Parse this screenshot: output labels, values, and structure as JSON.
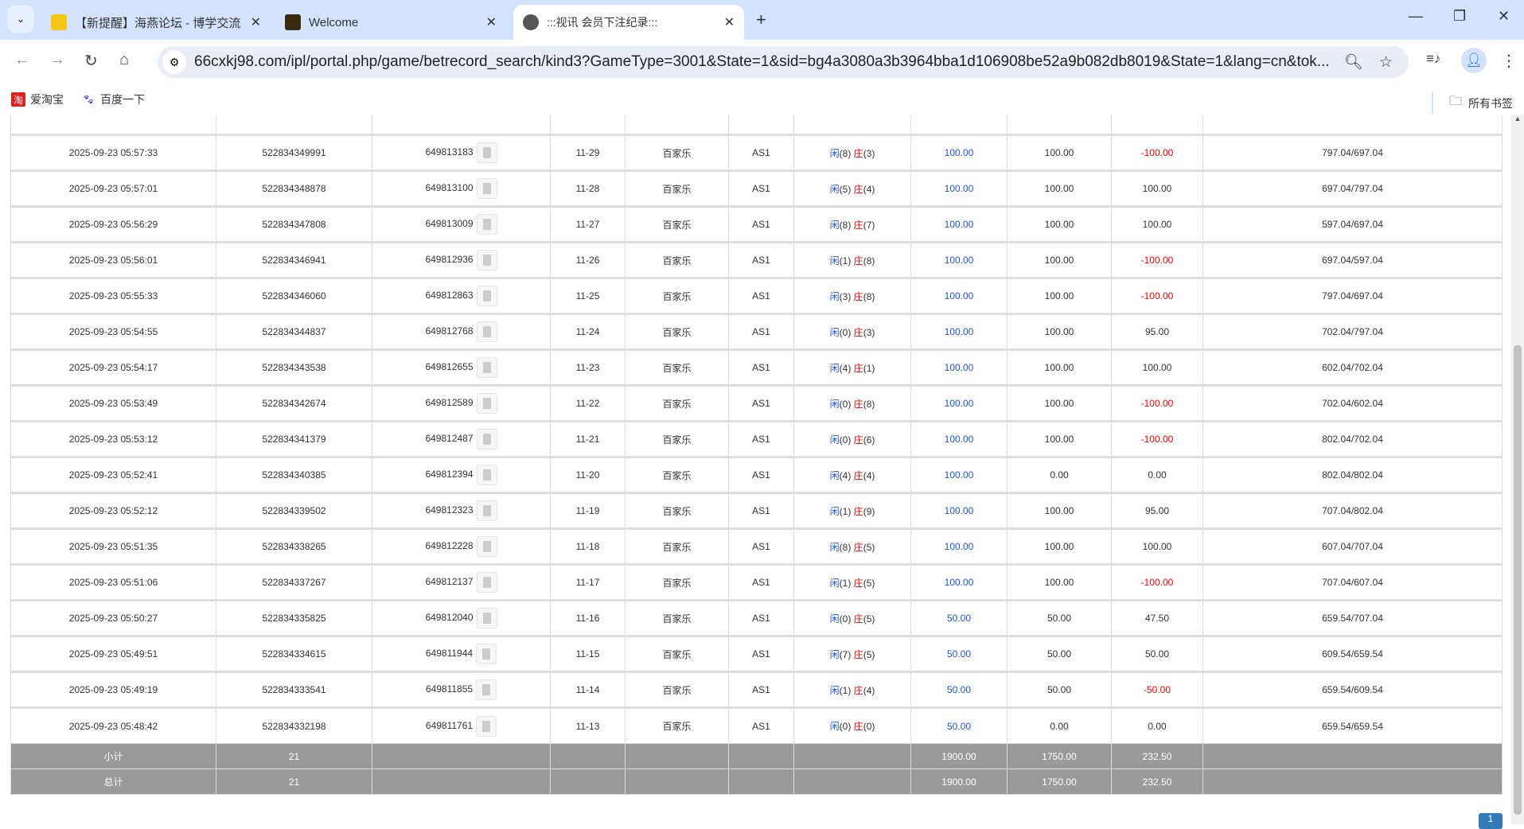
{
  "browser": {
    "tabs": [
      {
        "title": "【新提醒】海燕论坛 - 博学交流",
        "active": false,
        "favicon_color": "#f5c518"
      },
      {
        "title": "Welcome",
        "active": false,
        "favicon_color": "#3a2a10"
      },
      {
        "title": ":::视讯 会员下注纪录:::",
        "active": true,
        "favicon_color": "#555555"
      }
    ],
    "url": "66cxkj98.com/ipl/portal.php/game/betrecord_search/kind3?GameType=3001&State=1&sid=bg4a3080a3b3964bba1d106908be52a9b082db8019&State=1&lang=cn&tok...",
    "bookmarks": [
      {
        "label": "爱淘宝",
        "icon_color": "#e02020",
        "glyph": "淘"
      },
      {
        "label": "百度一下",
        "icon_color": "#2932e1",
        "glyph": "🐾"
      }
    ],
    "all_bookmarks": "所有书签"
  },
  "table": {
    "player_label": "闲",
    "banker_label": "庄",
    "rows": [
      [
        "2025-09-23 05:57:33",
        "522834349991",
        "649813183",
        "11-29",
        "百家乐",
        "AS1",
        "8",
        "3",
        "100.00",
        "100.00",
        "-100.00",
        "797.04/697.04"
      ],
      [
        "2025-09-23 05:57:01",
        "522834348878",
        "649813100",
        "11-28",
        "百家乐",
        "AS1",
        "5",
        "4",
        "100.00",
        "100.00",
        "100.00",
        "697.04/797.04"
      ],
      [
        "2025-09-23 05:56:29",
        "522834347808",
        "649813009",
        "11-27",
        "百家乐",
        "AS1",
        "8",
        "7",
        "100.00",
        "100.00",
        "100.00",
        "597.04/697.04"
      ],
      [
        "2025-09-23 05:56:01",
        "522834346941",
        "649812936",
        "11-26",
        "百家乐",
        "AS1",
        "1",
        "8",
        "100.00",
        "100.00",
        "-100.00",
        "697.04/597.04"
      ],
      [
        "2025-09-23 05:55:33",
        "522834346060",
        "649812863",
        "11-25",
        "百家乐",
        "AS1",
        "3",
        "8",
        "100.00",
        "100.00",
        "-100.00",
        "797.04/697.04"
      ],
      [
        "2025-09-23 05:54:55",
        "522834344837",
        "649812768",
        "11-24",
        "百家乐",
        "AS1",
        "0",
        "3",
        "100.00",
        "100.00",
        "95.00",
        "702.04/797.04"
      ],
      [
        "2025-09-23 05:54:17",
        "522834343538",
        "649812655",
        "11-23",
        "百家乐",
        "AS1",
        "4",
        "1",
        "100.00",
        "100.00",
        "100.00",
        "602.04/702.04"
      ],
      [
        "2025-09-23 05:53:49",
        "522834342674",
        "649812589",
        "11-22",
        "百家乐",
        "AS1",
        "0",
        "8",
        "100.00",
        "100.00",
        "-100.00",
        "702.04/602.04"
      ],
      [
        "2025-09-23 05:53:12",
        "522834341379",
        "649812487",
        "11-21",
        "百家乐",
        "AS1",
        "0",
        "6",
        "100.00",
        "100.00",
        "-100.00",
        "802.04/702.04"
      ],
      [
        "2025-09-23 05:52:41",
        "522834340385",
        "649812394",
        "11-20",
        "百家乐",
        "AS1",
        "4",
        "4",
        "100.00",
        "0.00",
        "0.00",
        "802.04/802.04"
      ],
      [
        "2025-09-23 05:52:12",
        "522834339502",
        "649812323",
        "11-19",
        "百家乐",
        "AS1",
        "1",
        "9",
        "100.00",
        "100.00",
        "95.00",
        "707.04/802.04"
      ],
      [
        "2025-09-23 05:51:35",
        "522834338265",
        "649812228",
        "11-18",
        "百家乐",
        "AS1",
        "8",
        "5",
        "100.00",
        "100.00",
        "100.00",
        "607.04/707.04"
      ],
      [
        "2025-09-23 05:51:06",
        "522834337267",
        "649812137",
        "11-17",
        "百家乐",
        "AS1",
        "1",
        "5",
        "100.00",
        "100.00",
        "-100.00",
        "707.04/607.04"
      ],
      [
        "2025-09-23 05:50:27",
        "522834335825",
        "649812040",
        "11-16",
        "百家乐",
        "AS1",
        "0",
        "5",
        "50.00",
        "50.00",
        "47.50",
        "659.54/707.04"
      ],
      [
        "2025-09-23 05:49:51",
        "522834334615",
        "649811944",
        "11-15",
        "百家乐",
        "AS1",
        "7",
        "5",
        "50.00",
        "50.00",
        "50.00",
        "609.54/659.54"
      ],
      [
        "2025-09-23 05:49:19",
        "522834333541",
        "649811855",
        "11-14",
        "百家乐",
        "AS1",
        "1",
        "4",
        "50.00",
        "50.00",
        "-50.00",
        "659.54/609.54"
      ],
      [
        "2025-09-23 05:48:42",
        "522834332198",
        "649811761",
        "11-13",
        "百家乐",
        "AS1",
        "0",
        "0",
        "50.00",
        "0.00",
        "0.00",
        "659.54/659.54"
      ]
    ],
    "subtotal": {
      "label": "小计",
      "count": "21",
      "bet": "1900.00",
      "valid": "1750.00",
      "result": "232.50"
    },
    "total": {
      "label": "总计",
      "count": "21",
      "bet": "1900.00",
      "valid": "1750.00",
      "result": "232.50"
    }
  },
  "pagination": {
    "current": "1"
  }
}
